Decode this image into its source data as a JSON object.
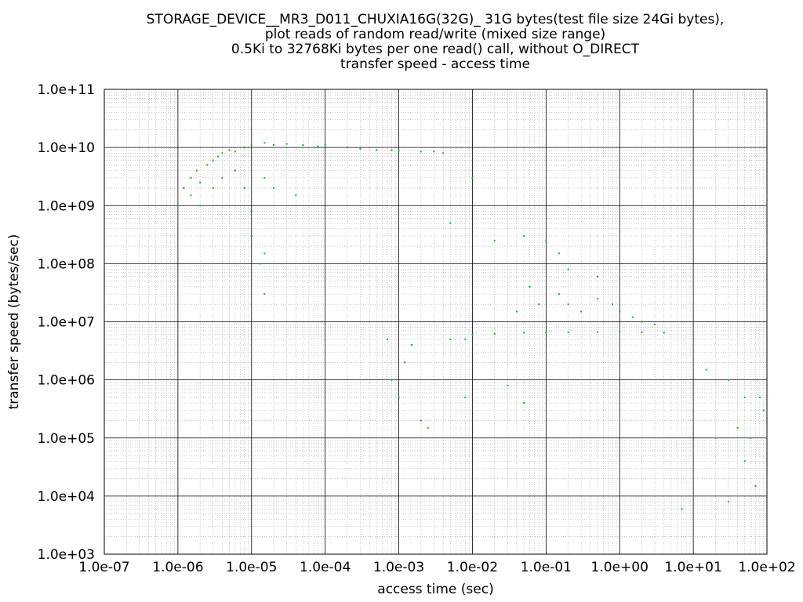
{
  "chart_data": {
    "type": "scatter",
    "title": [
      "STORAGE_DEVICE__MR3_D011_CHUXIA16G(32G)_ 31G bytes(test file size 24Gi bytes),",
      "plot reads of random read/write (mixed size range)",
      "0.5Ki to 32768Ki bytes per one read() call, without O_DIRECT",
      "transfer speed - access time"
    ],
    "xlabel": "access time (sec)",
    "ylabel": "transfer speed (bytes/sec)",
    "x_scale": "log",
    "y_scale": "log",
    "xlim": [
      1e-07,
      100
    ],
    "ylim": [
      1000,
      100000000000
    ],
    "x_ticks": [
      {
        "value": 1e-07,
        "label": "1.0e-07"
      },
      {
        "value": 1e-06,
        "label": "1.0e-06"
      },
      {
        "value": 1e-05,
        "label": "1.0e-05"
      },
      {
        "value": 0.0001,
        "label": "1.0e-04"
      },
      {
        "value": 0.001,
        "label": "1.0e-03"
      },
      {
        "value": 0.01,
        "label": "1.0e-02"
      },
      {
        "value": 0.1,
        "label": "1.0e-01"
      },
      {
        "value": 1,
        "label": "1.0e+00"
      },
      {
        "value": 10,
        "label": "1.0e+01"
      },
      {
        "value": 100,
        "label": "1.0e+02"
      }
    ],
    "y_ticks": [
      {
        "value": 1000,
        "label": "1.0e+03"
      },
      {
        "value": 10000,
        "label": "1.0e+04"
      },
      {
        "value": 100000,
        "label": "1.0e+05"
      },
      {
        "value": 1000000,
        "label": "1.0e+06"
      },
      {
        "value": 10000000,
        "label": "1.0e+07"
      },
      {
        "value": 100000000,
        "label": "1.0e+08"
      },
      {
        "value": 1000000000,
        "label": "1.0e+09"
      },
      {
        "value": 10000000000,
        "label": "1.0e+10"
      },
      {
        "value": 100000000000,
        "label": "1.0e+11"
      }
    ],
    "grid": true,
    "minor_grid": true,
    "series_color": "#00c000",
    "points": [
      [
        1.2e-06,
        2000000000.0
      ],
      [
        1.5e-06,
        3000000000.0
      ],
      [
        1.8e-06,
        4000000000.0
      ],
      [
        2e-06,
        2500000000.0
      ],
      [
        2.5e-06,
        5000000000.0
      ],
      [
        3e-06,
        6000000000.0
      ],
      [
        3.5e-06,
        7000000000.0
      ],
      [
        4e-06,
        8000000000.0
      ],
      [
        5e-06,
        9000000000.0
      ],
      [
        6e-06,
        8500000000.0
      ],
      [
        8e-06,
        10000000000.0
      ],
      [
        1e-05,
        11000000000.0
      ],
      [
        1.5e-05,
        12000000000.0
      ],
      [
        2e-05,
        11000000000.0
      ],
      [
        3e-05,
        11500000000.0
      ],
      [
        5e-05,
        11000000000.0
      ],
      [
        8e-05,
        10500000000.0
      ],
      [
        0.0001,
        11000000000.0
      ],
      [
        0.0002,
        10000000000.0
      ],
      [
        0.0003,
        9500000000.0
      ],
      [
        0.0005,
        9000000000.0
      ],
      [
        0.0008,
        9000000000.0
      ],
      [
        0.001,
        8800000000.0
      ],
      [
        0.002,
        8500000000.0
      ],
      [
        0.003,
        8500000000.0
      ],
      [
        0.004,
        8000000000.0
      ],
      [
        1e-06,
        1000000000.0
      ],
      [
        1.5e-06,
        1500000000.0
      ],
      [
        2e-06,
        1000000000.0
      ],
      [
        3e-06,
        2000000000.0
      ],
      [
        4e-06,
        3000000000.0
      ],
      [
        6e-06,
        4000000000.0
      ],
      [
        8e-06,
        2000000000.0
      ],
      [
        1e-05,
        800000000.0
      ],
      [
        1.5e-05,
        3000000000.0
      ],
      [
        2e-05,
        2000000000.0
      ],
      [
        4e-05,
        1500000000.0
      ],
      [
        1e-05,
        300000000.0
      ],
      [
        1.5e-05,
        150000000.0
      ],
      [
        1.3e-05,
        100000000.0
      ],
      [
        1.5e-05,
        30000000.0
      ],
      [
        0.005,
        500000000.0
      ],
      [
        0.01,
        3000000000.0
      ],
      [
        0.02,
        250000000.0
      ],
      [
        0.05,
        300000000.0
      ],
      [
        0.1,
        250000000.0
      ],
      [
        0.15,
        150000000.0
      ],
      [
        0.2,
        80000000.0
      ],
      [
        0.5,
        60000000.0
      ],
      [
        0.04,
        15000000.0
      ],
      [
        0.06,
        40000000.0
      ],
      [
        0.08,
        20000000.0
      ],
      [
        0.15,
        30000000.0
      ],
      [
        0.2,
        20000000.0
      ],
      [
        0.3,
        15000000.0
      ],
      [
        0.5,
        25000000.0
      ],
      [
        0.8,
        20000000.0
      ],
      [
        1.0,
        15000000.0
      ],
      [
        1.5,
        12000000.0
      ],
      [
        2.0,
        10000000.0
      ],
      [
        3.0,
        9000000.0
      ],
      [
        0.005,
        5000000.0
      ],
      [
        0.008,
        5000000.0
      ],
      [
        0.01,
        6000000.0
      ],
      [
        0.02,
        6200000.0
      ],
      [
        0.05,
        6500000.0
      ],
      [
        0.1,
        6500000.0
      ],
      [
        0.2,
        6600000.0
      ],
      [
        0.5,
        6600000.0
      ],
      [
        1.0,
        6600000.0
      ],
      [
        2.0,
        6600000.0
      ],
      [
        4.0,
        6500000.0
      ],
      [
        0.0007,
        5000000.0
      ],
      [
        0.0008,
        1000000.0
      ],
      [
        0.001,
        500000.0
      ],
      [
        0.0012,
        2000000.0
      ],
      [
        0.0015,
        4000000.0
      ],
      [
        0.002,
        200000.0
      ],
      [
        0.0025,
        150000.0
      ],
      [
        0.008,
        500000.0
      ],
      [
        0.03,
        800000.0
      ],
      [
        0.05,
        400000.0
      ],
      [
        15.0,
        1500000.0
      ],
      [
        30.0,
        1000000.0
      ],
      [
        50.0,
        500000.0
      ],
      [
        20.0,
        100000.0
      ],
      [
        40.0,
        150000.0
      ],
      [
        60.0,
        100000.0
      ],
      [
        80.0,
        500000.0
      ],
      [
        50.0,
        40000.0
      ],
      [
        30.0,
        8000.0
      ],
      [
        10.0,
        10000.0
      ],
      [
        7.0,
        6000.0
      ],
      [
        70.0,
        15000.0
      ],
      [
        90.0,
        300000.0
      ]
    ]
  }
}
